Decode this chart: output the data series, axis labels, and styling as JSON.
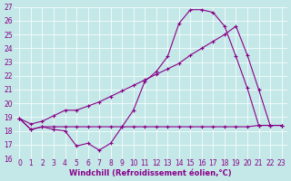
{
  "xlabel": "Windchill (Refroidissement éolien,°C)",
  "xlim": [
    0,
    23
  ],
  "ylim": [
    16,
    27
  ],
  "xticks": [
    0,
    1,
    2,
    3,
    4,
    5,
    6,
    7,
    8,
    9,
    10,
    11,
    12,
    13,
    14,
    15,
    16,
    17,
    18,
    19,
    20,
    21,
    22,
    23
  ],
  "yticks": [
    16,
    17,
    18,
    19,
    20,
    21,
    22,
    23,
    24,
    25,
    26,
    27
  ],
  "bg_color": "#c4e8e8",
  "line_color": "#880088",
  "grid_color": "#ffffff",
  "line1_x": [
    0,
    1,
    2,
    3,
    4,
    5,
    6,
    7,
    8,
    9,
    10,
    11,
    12,
    13,
    14,
    15,
    16,
    17,
    18,
    19,
    20,
    21,
    22,
    23
  ],
  "line1_y": [
    18.9,
    18.1,
    18.3,
    18.1,
    18.0,
    16.9,
    17.1,
    16.6,
    17.1,
    18.3,
    19.5,
    21.6,
    22.3,
    23.4,
    25.8,
    26.8,
    26.8,
    26.6,
    25.6,
    23.4,
    21.1,
    18.4,
    18.4,
    18.4
  ],
  "line2_x": [
    0,
    1,
    2,
    3,
    4,
    5,
    6,
    7,
    8,
    9,
    10,
    11,
    12,
    13,
    14,
    15,
    16,
    17,
    18,
    19,
    20,
    21,
    22,
    23
  ],
  "line2_y": [
    18.9,
    18.5,
    18.7,
    19.1,
    19.5,
    19.5,
    19.8,
    20.1,
    20.5,
    20.9,
    21.3,
    21.7,
    22.1,
    22.5,
    22.9,
    23.5,
    24.0,
    24.5,
    25.0,
    25.6,
    23.5,
    21.0,
    18.4,
    18.4
  ],
  "line3_x": [
    0,
    1,
    2,
    3,
    4,
    5,
    6,
    7,
    8,
    9,
    10,
    11,
    12,
    13,
    14,
    15,
    16,
    17,
    18,
    19,
    20,
    21,
    22,
    23
  ],
  "line3_y": [
    18.9,
    18.1,
    18.3,
    18.3,
    18.3,
    18.3,
    18.3,
    18.3,
    18.3,
    18.3,
    18.3,
    18.3,
    18.3,
    18.3,
    18.3,
    18.3,
    18.3,
    18.3,
    18.3,
    18.3,
    18.3,
    18.4,
    18.4,
    18.4
  ],
  "marker": "+",
  "markersize": 3,
  "linewidth": 0.8,
  "tick_fontsize": 5.5,
  "xlabel_fontsize": 6.0,
  "tick_color": "#880088",
  "xlabel_color": "#880088"
}
